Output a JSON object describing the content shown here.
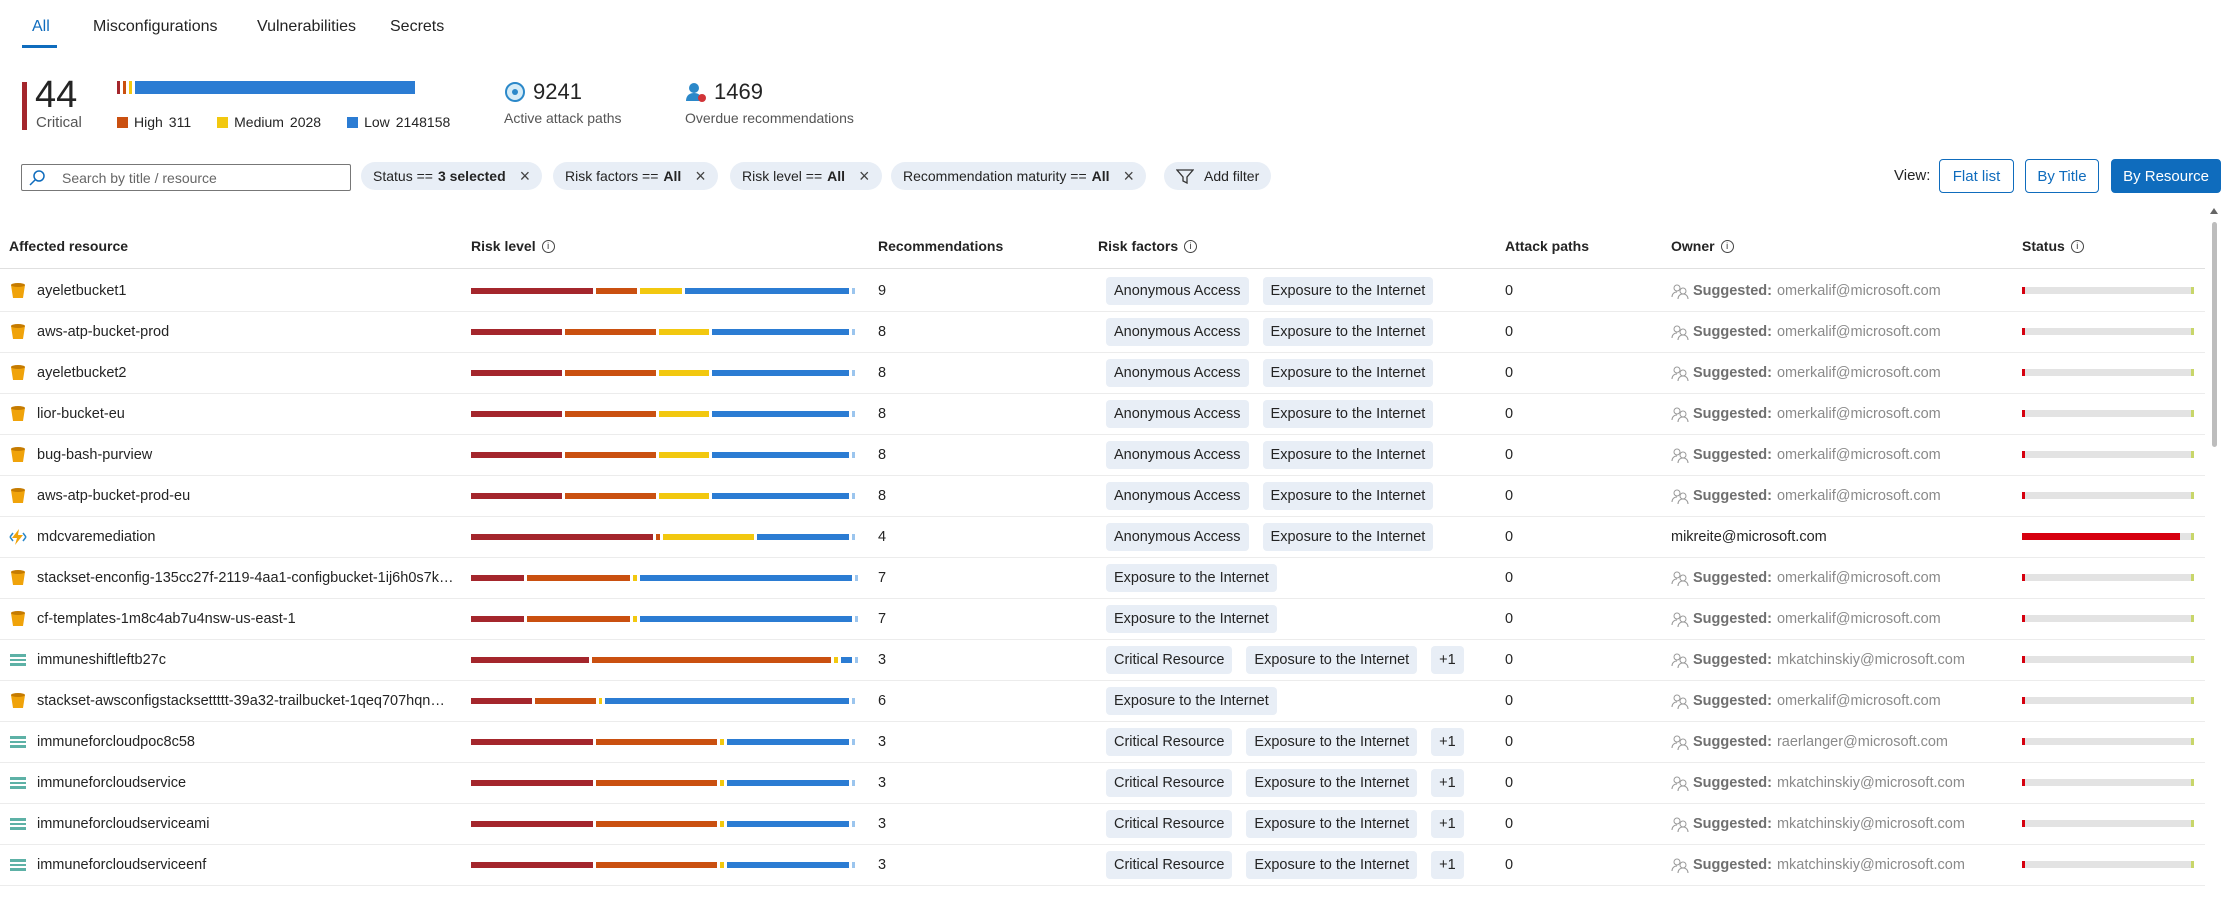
{
  "tabs": [
    "All",
    "Misconfigurations",
    "Vulnerabilities",
    "Secrets"
  ],
  "active_tab": 0,
  "summary": {
    "critical": {
      "value": 44,
      "label": "Critical",
      "color": "#a4262c"
    },
    "severities": [
      {
        "name": "High",
        "value": 311,
        "color": "#ca5010"
      },
      {
        "name": "Medium",
        "value": 2028,
        "color": "#f2c80f"
      },
      {
        "name": "Low",
        "value": 2148158,
        "color": "#2b7cd3"
      }
    ],
    "attack_paths": {
      "value": 9241,
      "label": "Active attack paths"
    },
    "overdue": {
      "value": 1469,
      "label": "Overdue recommendations"
    }
  },
  "search_placeholder": "Search by title / resource",
  "filters": [
    {
      "label": "Status ==",
      "value": "3 selected"
    },
    {
      "label": "Risk factors ==",
      "value": "All"
    },
    {
      "label": "Risk level ==",
      "value": "All"
    },
    {
      "label": "Recommendation maturity ==",
      "value": "All"
    }
  ],
  "add_filter": "Add filter",
  "view": {
    "label": "View:",
    "options": [
      "Flat list",
      "By Title",
      "By Resource"
    ],
    "selected": 2
  },
  "table": {
    "columns": [
      "Affected resource",
      "Risk level",
      "Recommendations",
      "Risk factors",
      "Attack paths",
      "Owner",
      "Status"
    ],
    "info_columns": [
      1,
      3,
      5,
      6
    ],
    "risk_colors": [
      "#a4262c",
      "#ca5010",
      "#f2c80f",
      "#2b7cd3"
    ],
    "suggested_label": "Suggested:",
    "rows": [
      {
        "icon": "bucket",
        "name": "ayeletbucket1",
        "risk": [
          32,
          11,
          11,
          43
        ],
        "recommendations": 9,
        "factors": [
          "Anonymous Access",
          "Exposure to the Internet"
        ],
        "attack_paths": 0,
        "suggested": true,
        "owner": "omerkalif@microsoft.com",
        "status": 1
      },
      {
        "icon": "bucket",
        "name": "aws-atp-bucket-prod",
        "risk": [
          24,
          24,
          13,
          36
        ],
        "recommendations": 8,
        "factors": [
          "Anonymous Access",
          "Exposure to the Internet"
        ],
        "attack_paths": 0,
        "suggested": true,
        "owner": "omerkalif@microsoft.com",
        "status": 1
      },
      {
        "icon": "bucket",
        "name": "ayeletbucket2",
        "risk": [
          24,
          24,
          13,
          36
        ],
        "recommendations": 8,
        "factors": [
          "Anonymous Access",
          "Exposure to the Internet"
        ],
        "attack_paths": 0,
        "suggested": true,
        "owner": "omerkalif@microsoft.com",
        "status": 1
      },
      {
        "icon": "bucket",
        "name": "lior-bucket-eu",
        "risk": [
          24,
          24,
          13,
          36
        ],
        "recommendations": 8,
        "factors": [
          "Anonymous Access",
          "Exposure to the Internet"
        ],
        "attack_paths": 0,
        "suggested": true,
        "owner": "omerkalif@microsoft.com",
        "status": 1
      },
      {
        "icon": "bucket",
        "name": "bug-bash-purview",
        "risk": [
          24,
          24,
          13,
          36
        ],
        "recommendations": 8,
        "factors": [
          "Anonymous Access",
          "Exposure to the Internet"
        ],
        "attack_paths": 0,
        "suggested": true,
        "owner": "omerkalif@microsoft.com",
        "status": 1
      },
      {
        "icon": "bucket",
        "name": "aws-atp-bucket-prod-eu",
        "risk": [
          24,
          24,
          13,
          36
        ],
        "recommendations": 8,
        "factors": [
          "Anonymous Access",
          "Exposure to the Internet"
        ],
        "attack_paths": 0,
        "suggested": true,
        "owner": "omerkalif@microsoft.com",
        "status": 1
      },
      {
        "icon": "function",
        "name": "mdcvaremediation",
        "risk": [
          48,
          1,
          24,
          24
        ],
        "recommendations": 4,
        "factors": [
          "Anonymous Access",
          "Exposure to the Internet"
        ],
        "attack_paths": 0,
        "suggested": false,
        "owner": "mikreite@microsoft.com",
        "status": 92
      },
      {
        "icon": "bucket",
        "name": "stackset-enconfig-135cc27f-2119-4aa1-configbucket-1ij6h0s7k…",
        "risk": [
          14,
          27,
          1,
          56
        ],
        "recommendations": 7,
        "factors": [
          "Exposure to the Internet"
        ],
        "attack_paths": 0,
        "suggested": true,
        "owner": "omerkalif@microsoft.com",
        "status": 1
      },
      {
        "icon": "bucket",
        "name": "cf-templates-1m8c4ab7u4nsw-us-east-1",
        "risk": [
          14,
          27,
          1,
          56
        ],
        "recommendations": 7,
        "factors": [
          "Exposure to the Internet"
        ],
        "attack_paths": 0,
        "suggested": true,
        "owner": "omerkalif@microsoft.com",
        "status": 1
      },
      {
        "icon": "storage",
        "name": "immuneshiftleftb27c",
        "risk": [
          31,
          63,
          1,
          3
        ],
        "recommendations": 3,
        "factors": [
          "Critical Resource",
          "Exposure to the Internet"
        ],
        "more": "+1",
        "attack_paths": 0,
        "suggested": true,
        "owner": "mkatchinskiy@microsoft.com",
        "status": 1
      },
      {
        "icon": "bucket",
        "name": "stackset-awsconfigstacksettttt-39a32-trailbucket-1qeq707hqn…",
        "risk": [
          16,
          16,
          1,
          64
        ],
        "recommendations": 6,
        "factors": [
          "Exposure to the Internet"
        ],
        "attack_paths": 0,
        "suggested": true,
        "owner": "omerkalif@microsoft.com",
        "status": 1
      },
      {
        "icon": "storage",
        "name": "immuneforcloudpoc8c58",
        "risk": [
          32,
          32,
          1,
          32
        ],
        "recommendations": 3,
        "factors": [
          "Critical Resource",
          "Exposure to the Internet"
        ],
        "more": "+1",
        "attack_paths": 0,
        "suggested": true,
        "owner": "raerlanger@microsoft.com",
        "status": 1
      },
      {
        "icon": "storage",
        "name": "immuneforcloudservice",
        "risk": [
          32,
          32,
          1,
          32
        ],
        "recommendations": 3,
        "factors": [
          "Critical Resource",
          "Exposure to the Internet"
        ],
        "more": "+1",
        "attack_paths": 0,
        "suggested": true,
        "owner": "mkatchinskiy@microsoft.com",
        "status": 1
      },
      {
        "icon": "storage",
        "name": "immuneforcloudserviceami",
        "risk": [
          32,
          32,
          1,
          32
        ],
        "recommendations": 3,
        "factors": [
          "Critical Resource",
          "Exposure to the Internet"
        ],
        "more": "+1",
        "attack_paths": 0,
        "suggested": true,
        "owner": "mkatchinskiy@microsoft.com",
        "status": 1
      },
      {
        "icon": "storage",
        "name": "immuneforcloudserviceenf",
        "risk": [
          32,
          32,
          1,
          32
        ],
        "recommendations": 3,
        "factors": [
          "Critical Resource",
          "Exposure to the Internet"
        ],
        "more": "+1",
        "attack_paths": 0,
        "suggested": true,
        "owner": "mkatchinskiy@microsoft.com",
        "status": 1
      }
    ]
  }
}
